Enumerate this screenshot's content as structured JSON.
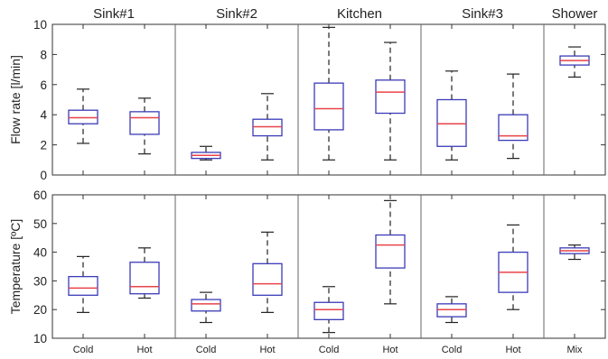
{
  "chart_data": [
    {
      "type": "boxplot",
      "ylabel": "Flow rate [l/min]",
      "ylim": [
        0,
        10
      ],
      "yticks": [
        0,
        2,
        4,
        6,
        8,
        10
      ],
      "group_labels": [
        "Sink#1",
        "Sink#2",
        "Kitchen",
        "Sink#3",
        "Shower"
      ],
      "categories": [
        "Cold",
        "Hot",
        "Cold",
        "Hot",
        "Cold",
        "Hot",
        "Cold",
        "Hot",
        "Mix"
      ],
      "boxes": [
        {
          "group": "Sink#1",
          "category": "Cold",
          "min": 2.1,
          "q1": 3.4,
          "median": 3.8,
          "q3": 4.3,
          "max": 5.7
        },
        {
          "group": "Sink#1",
          "category": "Hot",
          "min": 1.4,
          "q1": 2.7,
          "median": 3.8,
          "q3": 4.2,
          "max": 5.1
        },
        {
          "group": "Sink#2",
          "category": "Cold",
          "min": 1.0,
          "q1": 1.1,
          "median": 1.3,
          "q3": 1.5,
          "max": 1.9
        },
        {
          "group": "Sink#2",
          "category": "Hot",
          "min": 1.0,
          "q1": 2.6,
          "median": 3.2,
          "q3": 3.7,
          "max": 5.4
        },
        {
          "group": "Kitchen",
          "category": "Cold",
          "min": 1.0,
          "q1": 3.0,
          "median": 4.4,
          "q3": 6.1,
          "max": 9.8
        },
        {
          "group": "Kitchen",
          "category": "Hot",
          "min": 1.0,
          "q1": 4.1,
          "median": 5.5,
          "q3": 6.3,
          "max": 8.8
        },
        {
          "group": "Sink#3",
          "category": "Cold",
          "min": 1.0,
          "q1": 1.9,
          "median": 3.4,
          "q3": 5.0,
          "max": 6.9
        },
        {
          "group": "Sink#3",
          "category": "Hot",
          "min": 1.1,
          "q1": 2.3,
          "median": 2.6,
          "q3": 4.0,
          "max": 6.7
        },
        {
          "group": "Shower",
          "category": "Mix",
          "min": 6.5,
          "q1": 7.3,
          "median": 7.6,
          "q3": 7.9,
          "max": 8.5
        }
      ]
    },
    {
      "type": "boxplot",
      "ylabel": "Temperature [ºC]",
      "ylim": [
        10,
        60
      ],
      "yticks": [
        10,
        20,
        30,
        40,
        50,
        60
      ],
      "categories": [
        "Cold",
        "Hot",
        "Cold",
        "Hot",
        "Cold",
        "Hot",
        "Cold",
        "Hot",
        "Mix"
      ],
      "boxes": [
        {
          "group": "Sink#1",
          "category": "Cold",
          "min": 19.0,
          "q1": 25.0,
          "median": 27.5,
          "q3": 31.5,
          "max": 38.5
        },
        {
          "group": "Sink#1",
          "category": "Hot",
          "min": 24.0,
          "q1": 25.5,
          "median": 28.0,
          "q3": 36.5,
          "max": 41.5
        },
        {
          "group": "Sink#2",
          "category": "Cold",
          "min": 15.5,
          "q1": 19.5,
          "median": 22.0,
          "q3": 23.5,
          "max": 26.0
        },
        {
          "group": "Sink#2",
          "category": "Hot",
          "min": 19.0,
          "q1": 25.0,
          "median": 29.0,
          "q3": 36.0,
          "max": 47.0
        },
        {
          "group": "Kitchen",
          "category": "Cold",
          "min": 12.0,
          "q1": 16.5,
          "median": 20.0,
          "q3": 22.5,
          "max": 28.0
        },
        {
          "group": "Kitchen",
          "category": "Hot",
          "min": 22.0,
          "q1": 34.5,
          "median": 42.5,
          "q3": 46.0,
          "max": 58.0
        },
        {
          "group": "Sink#3",
          "category": "Cold",
          "min": 15.5,
          "q1": 17.5,
          "median": 20.0,
          "q3": 22.0,
          "max": 24.5
        },
        {
          "group": "Sink#3",
          "category": "Hot",
          "min": 20.0,
          "q1": 26.0,
          "median": 33.0,
          "q3": 40.0,
          "max": 49.5
        },
        {
          "group": "Shower",
          "category": "Mix",
          "min": 37.5,
          "q1": 39.5,
          "median": 40.5,
          "q3": 41.5,
          "max": 42.5
        }
      ]
    }
  ],
  "colors": {
    "box": "#3b3bb8",
    "median": "#e8434a",
    "whisker": "#222222",
    "divider": "#666666",
    "axis": "#333333"
  }
}
